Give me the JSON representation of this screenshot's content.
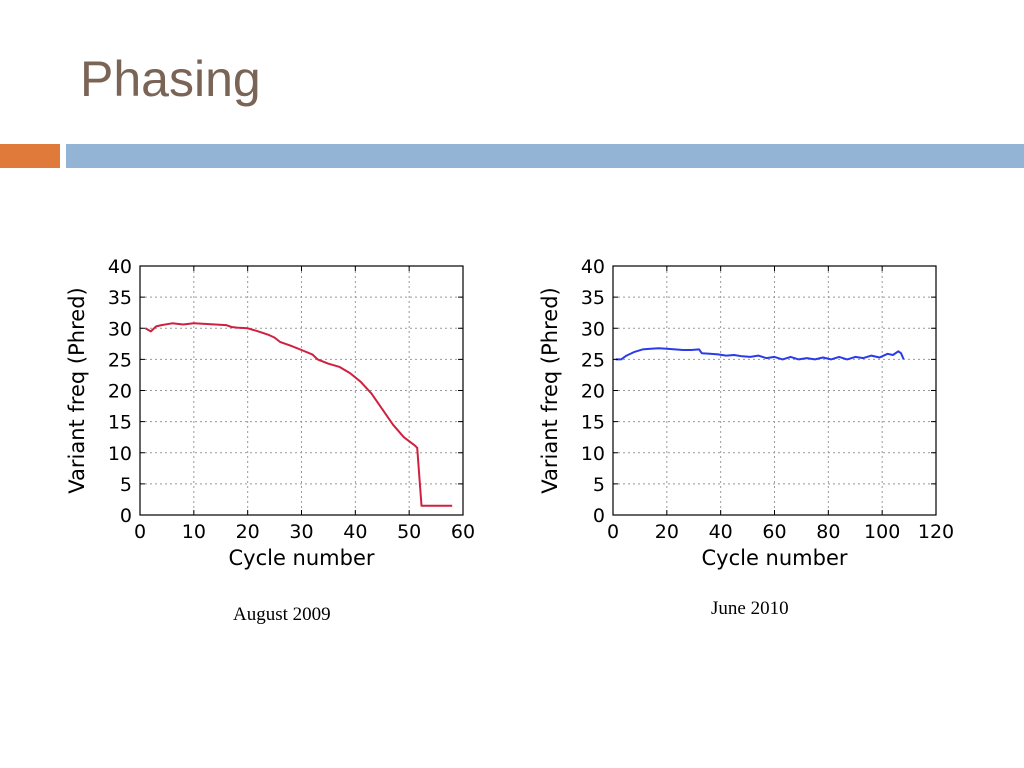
{
  "slide": {
    "title": "Phasing",
    "accent_color": "#e07a3a",
    "bar_color": "#93b4d4"
  },
  "captions": [
    "August 2009",
    "June 2010"
  ],
  "chart_data": [
    {
      "type": "line",
      "title": "",
      "xlabel": "Cycle number",
      "ylabel": "Variant freq (Phred)",
      "xlim": [
        0,
        60
      ],
      "ylim": [
        0,
        40
      ],
      "xticks": [
        0,
        10,
        20,
        30,
        40,
        50,
        60
      ],
      "yticks": [
        0,
        5,
        10,
        15,
        20,
        25,
        30,
        35,
        40
      ],
      "grid": true,
      "series": [
        {
          "color": "#d0203f",
          "x": [
            1,
            2,
            3,
            4,
            6,
            8,
            10,
            12,
            14,
            16,
            17,
            18,
            20,
            22,
            24,
            25,
            26,
            28,
            30,
            32,
            33,
            35,
            37,
            39,
            41,
            43,
            45,
            47,
            49,
            51,
            51.5,
            52.3,
            55,
            58
          ],
          "y": [
            30,
            29.5,
            30.3,
            30.5,
            30.8,
            30.6,
            30.8,
            30.7,
            30.6,
            30.5,
            30.2,
            30.1,
            30.0,
            29.5,
            28.9,
            28.5,
            27.8,
            27.2,
            26.5,
            25.8,
            25.0,
            24.3,
            23.8,
            22.8,
            21.4,
            19.5,
            17.0,
            14.5,
            12.5,
            11.2,
            10.8,
            1.5,
            1.5,
            1.5
          ]
        }
      ]
    },
    {
      "type": "line",
      "title": "",
      "xlabel": "Cycle number",
      "ylabel": "Variant freq (Phred)",
      "xlim": [
        0,
        120
      ],
      "ylim": [
        0,
        40
      ],
      "xticks": [
        0,
        20,
        40,
        60,
        80,
        100,
        120
      ],
      "yticks": [
        0,
        5,
        10,
        15,
        20,
        25,
        30,
        35,
        40
      ],
      "grid": true,
      "series": [
        {
          "color": "#2a3be8",
          "x": [
            1,
            3,
            5,
            8,
            11,
            14,
            17,
            20,
            23,
            26,
            29,
            32,
            33,
            36,
            39,
            42,
            45,
            48,
            51,
            54,
            57,
            60,
            63,
            66,
            69,
            72,
            75,
            78,
            81,
            84,
            87,
            90,
            93,
            96,
            99,
            102,
            104,
            106,
            107,
            108
          ],
          "y": [
            25.0,
            25.0,
            25.6,
            26.2,
            26.6,
            26.7,
            26.8,
            26.7,
            26.6,
            26.5,
            26.5,
            26.6,
            26.0,
            25.9,
            25.8,
            25.6,
            25.7,
            25.5,
            25.4,
            25.6,
            25.2,
            25.4,
            25.0,
            25.4,
            25.0,
            25.2,
            25.0,
            25.3,
            25.0,
            25.4,
            25.0,
            25.4,
            25.2,
            25.6,
            25.3,
            25.9,
            25.7,
            26.3,
            26.0,
            25.0
          ]
        }
      ]
    }
  ]
}
